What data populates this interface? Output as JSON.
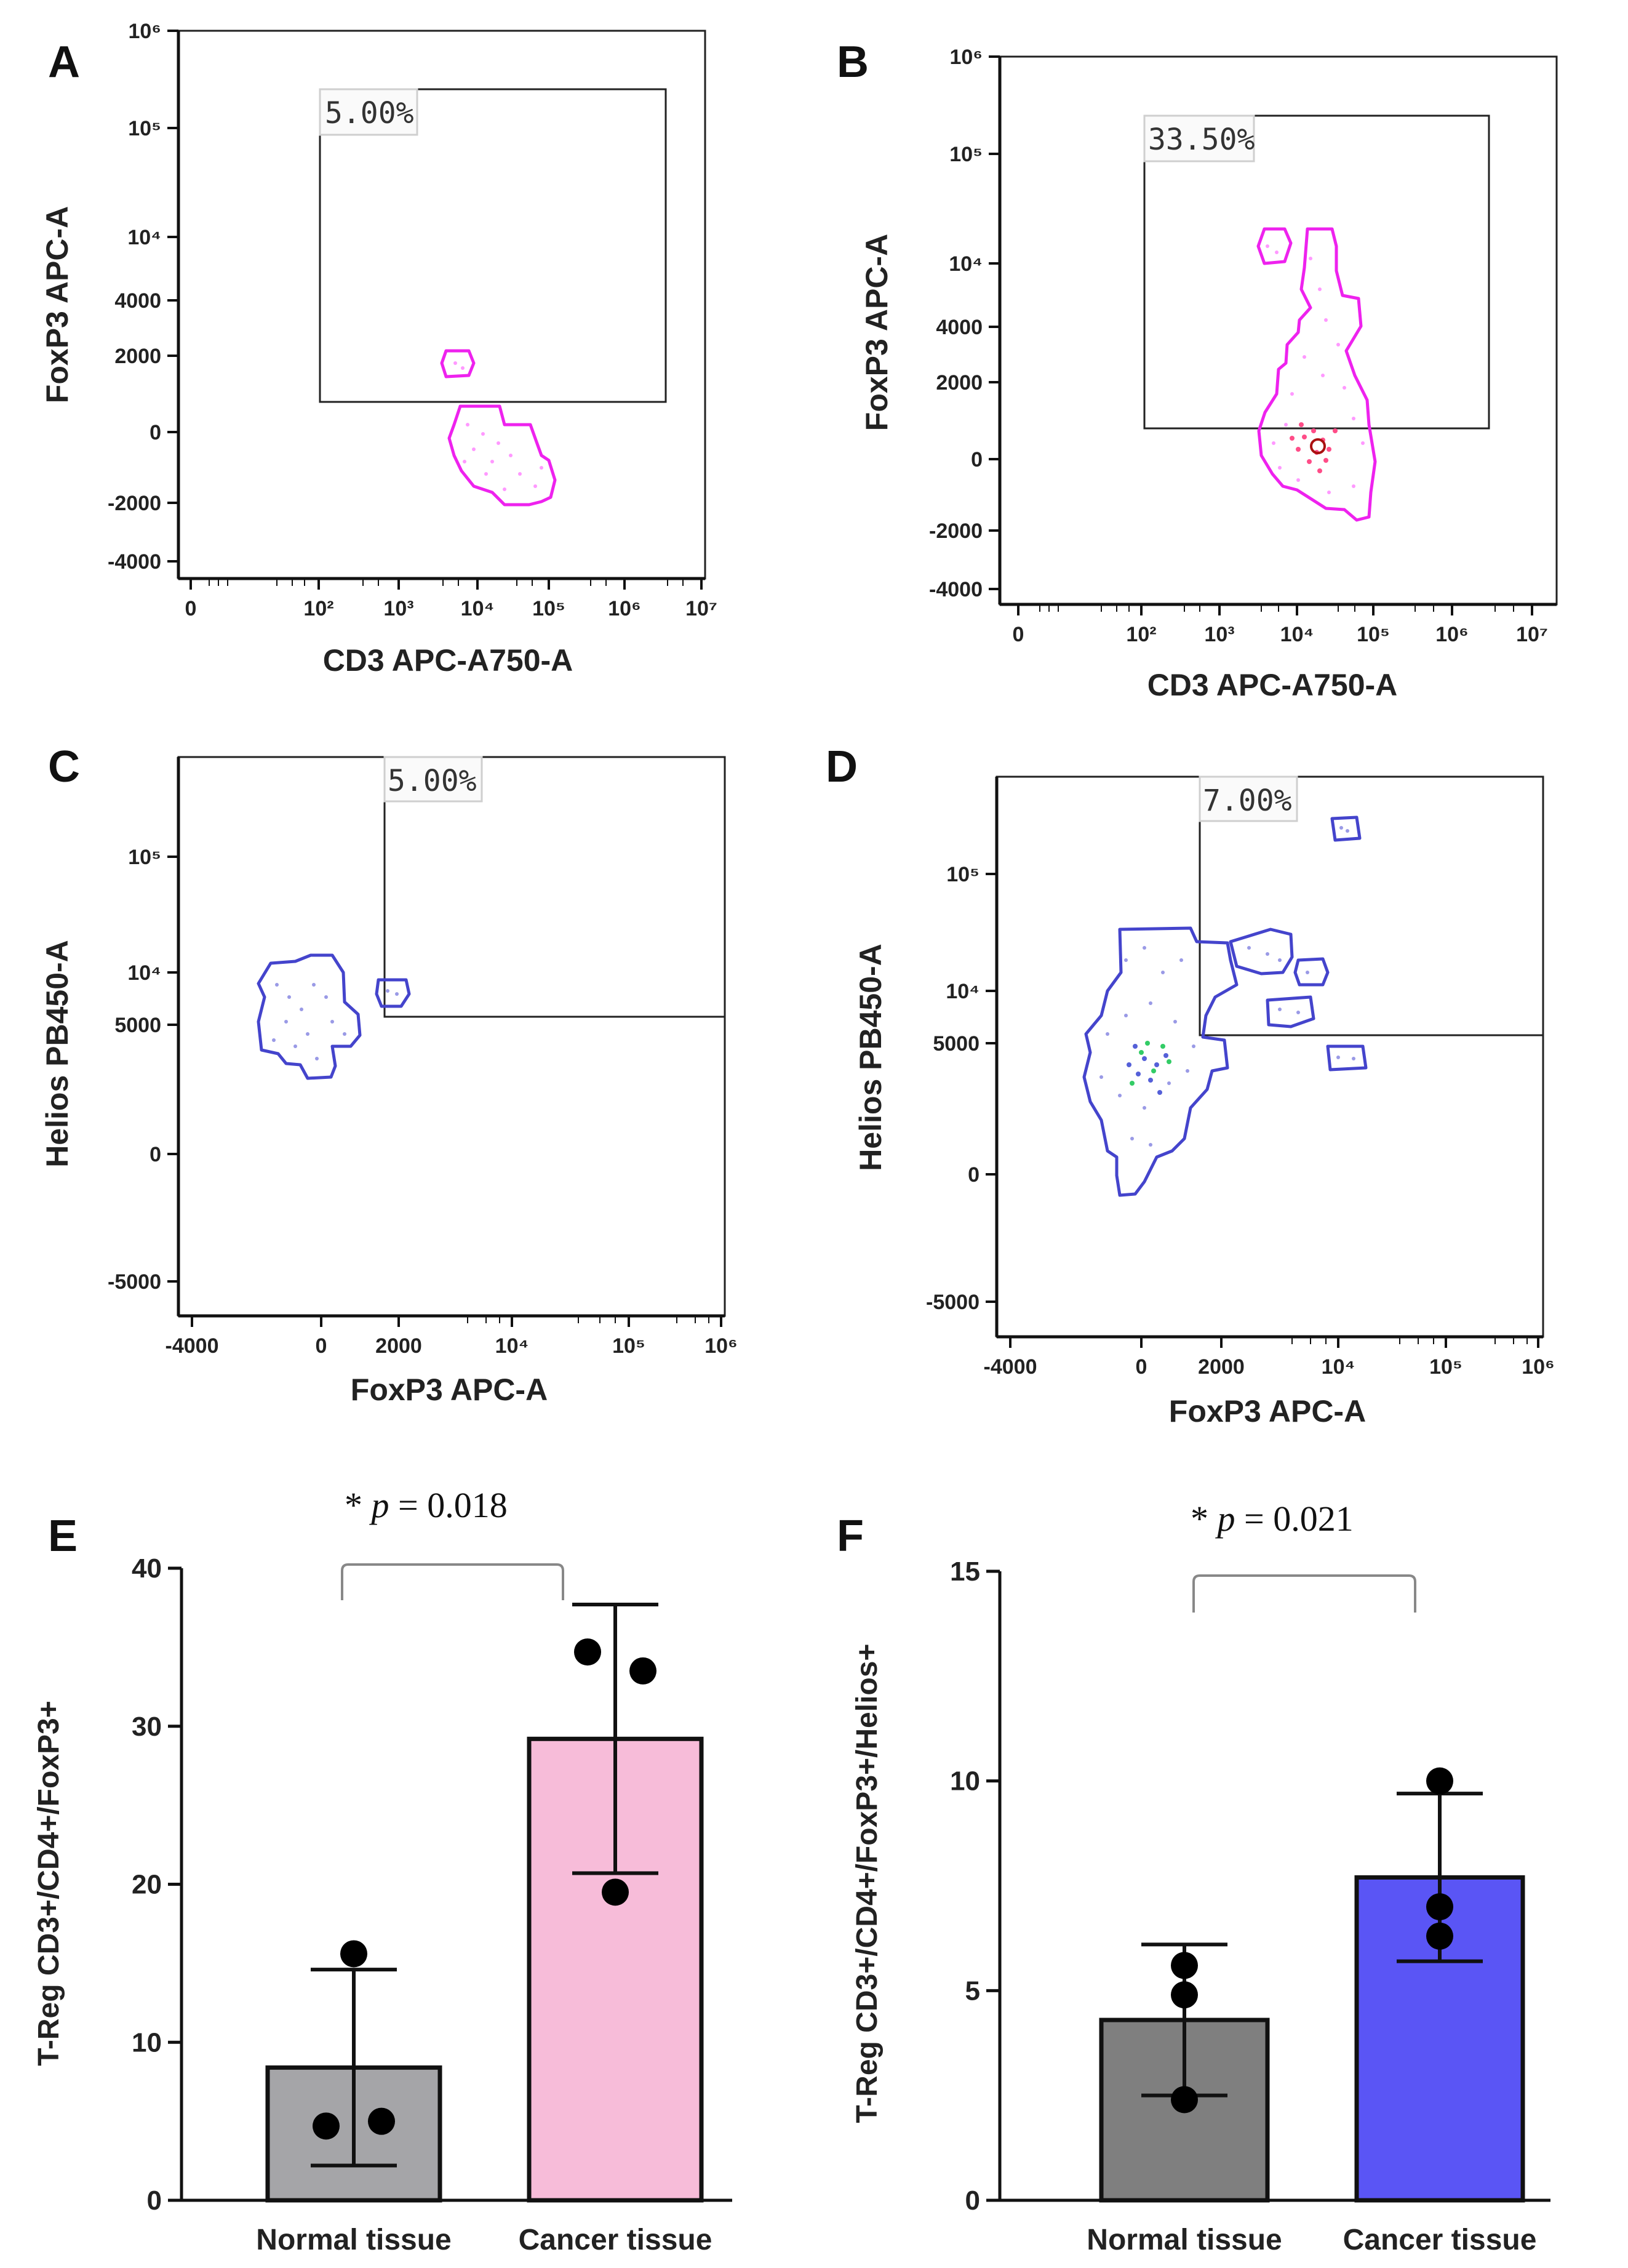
{
  "panels": [
    {
      "id": "A",
      "label": "A",
      "xlabel": "CD3 APC-A750-A",
      "ylabel": "FoxP3 APC-A",
      "xticks": [
        "0",
        "10²",
        "10³",
        "10⁴",
        "10⁵",
        "10⁶",
        "10⁷"
      ],
      "yticks": [
        "10⁶",
        "10⁵",
        "10⁴",
        "4000",
        "2000",
        "0",
        "-2000",
        "-4000"
      ],
      "gate_label": "5.00%",
      "color": "#ee22ee"
    },
    {
      "id": "B",
      "label": "B",
      "xlabel": "CD3 APC-A750-A",
      "ylabel": "FoxP3 APC-A",
      "xticks": [
        "0",
        "10²",
        "10³",
        "10⁴",
        "10⁵",
        "10⁶",
        "10⁷"
      ],
      "yticks": [
        "10⁶",
        "10⁵",
        "10⁴",
        "4000",
        "2000",
        "0",
        "-2000",
        "-4000"
      ],
      "gate_label": "33.50%",
      "color": "#ee22ee"
    },
    {
      "id": "C",
      "label": "C",
      "xlabel": "FoxP3 APC-A",
      "ylabel": "Helios PB450-A",
      "xticks": [
        "-4000",
        "0",
        "2000",
        "10⁴",
        "10⁵",
        "10⁶"
      ],
      "yticks": [
        "10⁵",
        "10⁴",
        "5000",
        "0",
        "-5000"
      ],
      "gate_label": "5.00%",
      "color": "#4444cc"
    },
    {
      "id": "D",
      "label": "D",
      "xlabel": "FoxP3 APC-A",
      "ylabel": "Helios PB450-A",
      "xticks": [
        "-4000",
        "0",
        "2000",
        "10⁴",
        "10⁵",
        "10⁶"
      ],
      "yticks": [
        "10⁵",
        "10⁴",
        "5000",
        "0",
        "-5000"
      ],
      "gate_label": "7.00%",
      "color": "#4444cc"
    }
  ],
  "chart_data": [
    {
      "id": "E",
      "label": "E",
      "type": "bar",
      "categories": [
        "Normal tissue",
        "Cancer tissue"
      ],
      "values": [
        8.4,
        29.2
      ],
      "errors": [
        6.2,
        8.5
      ],
      "points": [
        [
          15.6,
          4.7,
          5.0
        ],
        [
          34.7,
          33.5,
          19.5
        ]
      ],
      "colors": [
        "#a5a5a8",
        "#f7bcd9"
      ],
      "ylabel": "T-Reg CD3+/CD4+/FoxP3+",
      "ylim": [
        0,
        40
      ],
      "yticks": [
        "0",
        "10",
        "20",
        "30",
        "40"
      ],
      "ytick_values": [
        0,
        10,
        20,
        30,
        40
      ],
      "significance": {
        "star": "*",
        "p_symbol": "p",
        "text": " = 0.018"
      }
    },
    {
      "id": "F",
      "label": "F",
      "type": "bar",
      "categories": [
        "Normal tissue",
        "Cancer tissue"
      ],
      "values": [
        4.3,
        7.7
      ],
      "errors": [
        1.8,
        2.0
      ],
      "points": [
        [
          5.6,
          4.9,
          2.4
        ],
        [
          10.0,
          7.0,
          6.3
        ]
      ],
      "colors": [
        "#7f7f7f",
        "#5a55f5"
      ],
      "ylabel": "T-Reg CD3+/CD4+/FoxP3+/Helios+",
      "ylim": [
        0,
        15
      ],
      "yticks": [
        "0",
        "5",
        "10",
        "15"
      ],
      "ytick_values": [
        0,
        5,
        10,
        15
      ],
      "significance": {
        "star": "*",
        "p_symbol": "p",
        "text": " = 0.021"
      }
    }
  ]
}
